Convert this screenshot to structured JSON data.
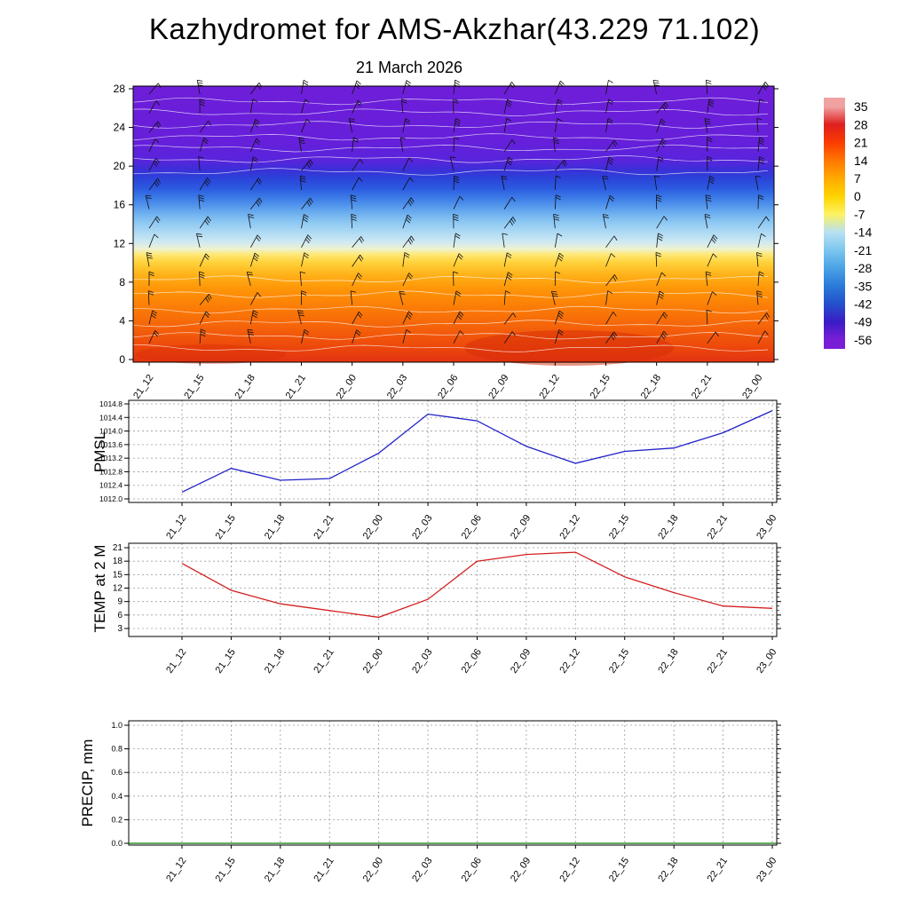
{
  "title": "Kazhydromet for AMS-Akzhar(43.229 71.102)",
  "subtitle": "21 March 2026",
  "time_labels": [
    "21_12",
    "21_15",
    "21_18",
    "21_21",
    "22_00",
    "22_03",
    "22_06",
    "22_09",
    "22_12",
    "22_15",
    "22_18",
    "22_21",
    "23_00"
  ],
  "chart_data": [
    {
      "type": "heatmap",
      "name": "upper-air",
      "description": "Temperature shading with wind barbs vs height and time",
      "x": [
        "21_12",
        "21_15",
        "21_18",
        "21_21",
        "22_00",
        "22_03",
        "22_06",
        "22_09",
        "22_12",
        "22_15",
        "22_18",
        "22_21",
        "23_00"
      ],
      "ylim": [
        0,
        28
      ],
      "yticks": [
        28,
        24,
        20,
        16,
        12,
        8,
        4,
        0
      ],
      "ytick_labels": [
        "28",
        "24",
        "20",
        "16",
        "12",
        "8",
        "4",
        "0"
      ],
      "legend_position": "right colorbar",
      "colorbar": {
        "tick_labels": [
          "35",
          "28",
          "21",
          "14",
          "7",
          "0",
          "-7",
          "-14",
          "-21",
          "-28",
          "-35",
          "-42",
          "-49",
          "-56"
        ],
        "colors": [
          "#f0a2a2",
          "#de1f1f",
          "#fb3c00",
          "#ff7700",
          "#ffaa00",
          "#ffd400",
          "#fdf263",
          "#b8e0f2",
          "#7cc6ee",
          "#4aa2e6",
          "#2a7ad8",
          "#2450cc",
          "#3a1cc6",
          "#7a1ed6"
        ]
      },
      "gradient_stops": [
        [
          0,
          "#6e1ed8"
        ],
        [
          0.2,
          "#661fda"
        ],
        [
          0.27,
          "#5824dc"
        ],
        [
          0.3,
          "#3d2ed8"
        ],
        [
          0.33,
          "#2c40d8"
        ],
        [
          0.37,
          "#2b5ae0"
        ],
        [
          0.41,
          "#3f80e8"
        ],
        [
          0.45,
          "#63a6ee"
        ],
        [
          0.49,
          "#8ac6f2"
        ],
        [
          0.53,
          "#aedaf4"
        ],
        [
          0.565,
          "#cfe9f2"
        ],
        [
          0.59,
          "#eef2cf"
        ],
        [
          0.61,
          "#ffe876"
        ],
        [
          0.64,
          "#ffd139"
        ],
        [
          0.68,
          "#ffb41c"
        ],
        [
          0.73,
          "#ff9708"
        ],
        [
          0.8,
          "#fb7d07"
        ],
        [
          0.88,
          "#f4600a"
        ],
        [
          0.95,
          "#ec460c"
        ],
        [
          1,
          "#e23212"
        ]
      ]
    },
    {
      "type": "line",
      "name": "pmsl",
      "ylabel": "PMSL",
      "color": "#2020c8",
      "x": [
        "21_12",
        "21_15",
        "21_18",
        "21_21",
        "22_00",
        "22_03",
        "22_06",
        "22_09",
        "22_12",
        "22_15",
        "22_18",
        "22_21",
        "23_00"
      ],
      "values": [
        1012.2,
        1012.9,
        1012.55,
        1012.6,
        1013.35,
        1014.5,
        1014.3,
        1013.55,
        1013.05,
        1013.4,
        1013.5,
        1013.95,
        1014.6
      ],
      "ylim": [
        1012.0,
        1014.8
      ],
      "yticks": [
        1014.8,
        1014.4,
        1014.0,
        1013.6,
        1013.2,
        1012.8,
        1012.4,
        1012.0
      ],
      "ytick_labels": [
        "1014.8",
        "1014.4",
        "1014.0",
        "1013.6",
        "1013.2",
        "1012.8",
        "1012.4",
        "1012.0"
      ],
      "grid": "dashed"
    },
    {
      "type": "line",
      "name": "temp-2m",
      "ylabel": "TEMP at 2 M",
      "color": "#d42020",
      "x": [
        "21_12",
        "21_15",
        "21_18",
        "21_21",
        "22_00",
        "22_03",
        "22_06",
        "22_09",
        "22_12",
        "22_15",
        "22_18",
        "22_21",
        "23_00"
      ],
      "values": [
        17.5,
        11.5,
        8.5,
        7,
        5.5,
        9.5,
        18,
        19.5,
        20,
        14.5,
        11,
        8,
        7.5
      ],
      "ylim": [
        3,
        21
      ],
      "yticks": [
        21,
        18,
        15,
        12,
        9,
        6,
        3
      ],
      "ytick_labels": [
        "21",
        "18",
        "15",
        "12",
        "9",
        "6",
        "3"
      ],
      "grid": "dashed"
    },
    {
      "type": "line",
      "name": "precip",
      "ylabel": "PRECIP, mm",
      "color": "#0a7a0a",
      "x": [
        "21_12",
        "21_15",
        "21_18",
        "21_21",
        "22_00",
        "22_03",
        "22_06",
        "22_09",
        "22_12",
        "22_15",
        "22_18",
        "22_21",
        "23_00"
      ],
      "values": [
        0,
        0,
        0,
        0,
        0,
        0,
        0,
        0,
        0,
        0,
        0,
        0,
        0
      ],
      "ylim": [
        0,
        1
      ],
      "yticks": [
        1.0,
        0.8,
        0.6,
        0.4,
        0.2,
        0.0
      ],
      "ytick_labels": [
        "1.0",
        "0.8",
        "0.6",
        "0.4",
        "0.2",
        "0.0"
      ],
      "grid": "dashed"
    }
  ]
}
